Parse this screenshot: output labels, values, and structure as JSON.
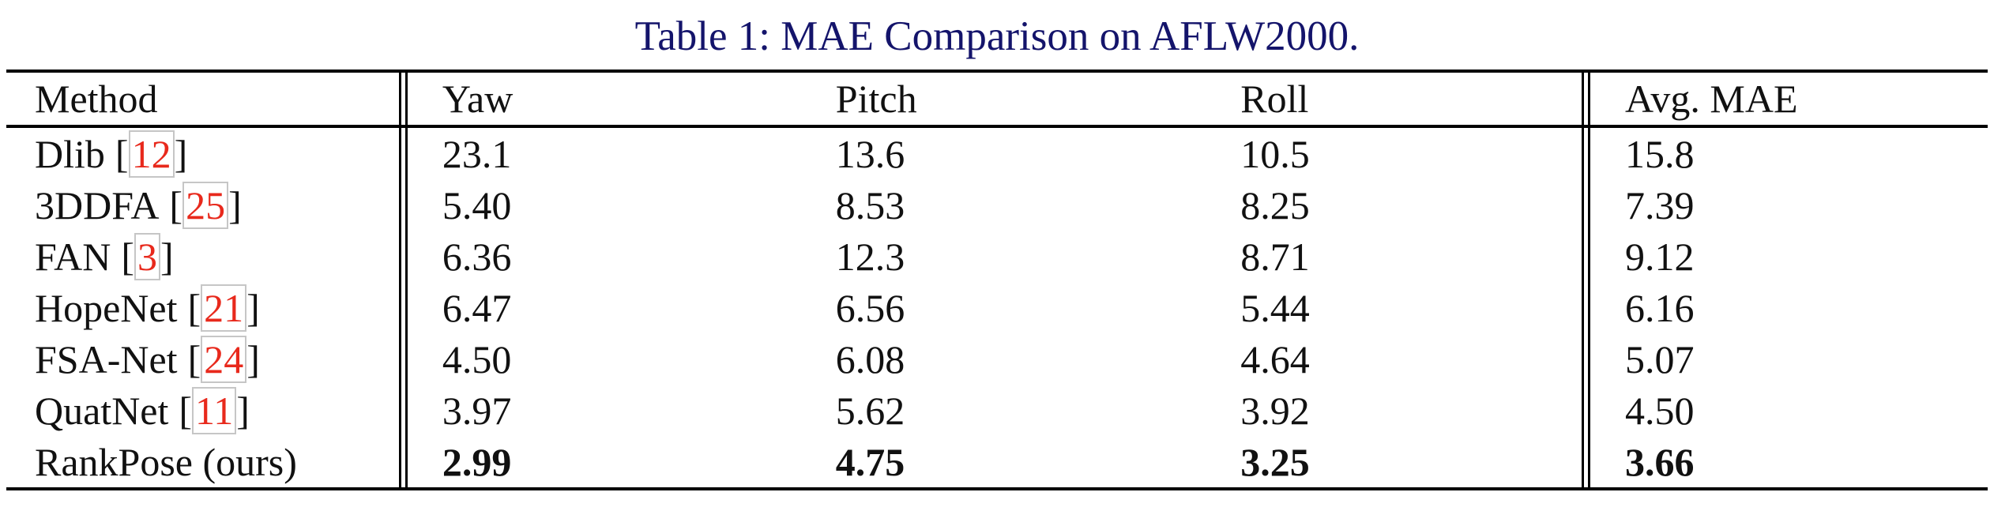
{
  "caption": "Table 1: MAE Comparison on AFLW2000.",
  "colors": {
    "caption_text": "#14146b",
    "citation_text": "#e8291c",
    "citation_box_border": "#c6c6c6",
    "body_text": "#111111",
    "rule": "#000000",
    "background": "#ffffff"
  },
  "table": {
    "columns": [
      "Method",
      "Yaw",
      "Pitch",
      "Roll",
      "Avg. MAE"
    ],
    "citation_bracket_open": "[",
    "citation_bracket_close": "]",
    "rows": [
      {
        "method": "Dlib",
        "cite": "12",
        "yaw": "23.1",
        "pitch": "13.6",
        "roll": "10.5",
        "avg": "15.8",
        "bold": false
      },
      {
        "method": "3DDFA",
        "cite": "25",
        "yaw": "5.40",
        "pitch": "8.53",
        "roll": "8.25",
        "avg": "7.39",
        "bold": false
      },
      {
        "method": "FAN",
        "cite": "3",
        "yaw": "6.36",
        "pitch": "12.3",
        "roll": "8.71",
        "avg": "9.12",
        "bold": false
      },
      {
        "method": "HopeNet",
        "cite": "21",
        "yaw": "6.47",
        "pitch": "6.56",
        "roll": "5.44",
        "avg": "6.16",
        "bold": false
      },
      {
        "method": "FSA-Net",
        "cite": "24",
        "yaw": "4.50",
        "pitch": "6.08",
        "roll": "4.64",
        "avg": "5.07",
        "bold": false
      },
      {
        "method": "QuatNet",
        "cite": "11",
        "yaw": "3.97",
        "pitch": "5.62",
        "roll": "3.92",
        "avg": "4.50",
        "bold": false
      },
      {
        "method": "RankPose (ours)",
        "cite": null,
        "yaw": "2.99",
        "pitch": "4.75",
        "roll": "3.25",
        "avg": "3.66",
        "bold": true
      }
    ]
  }
}
